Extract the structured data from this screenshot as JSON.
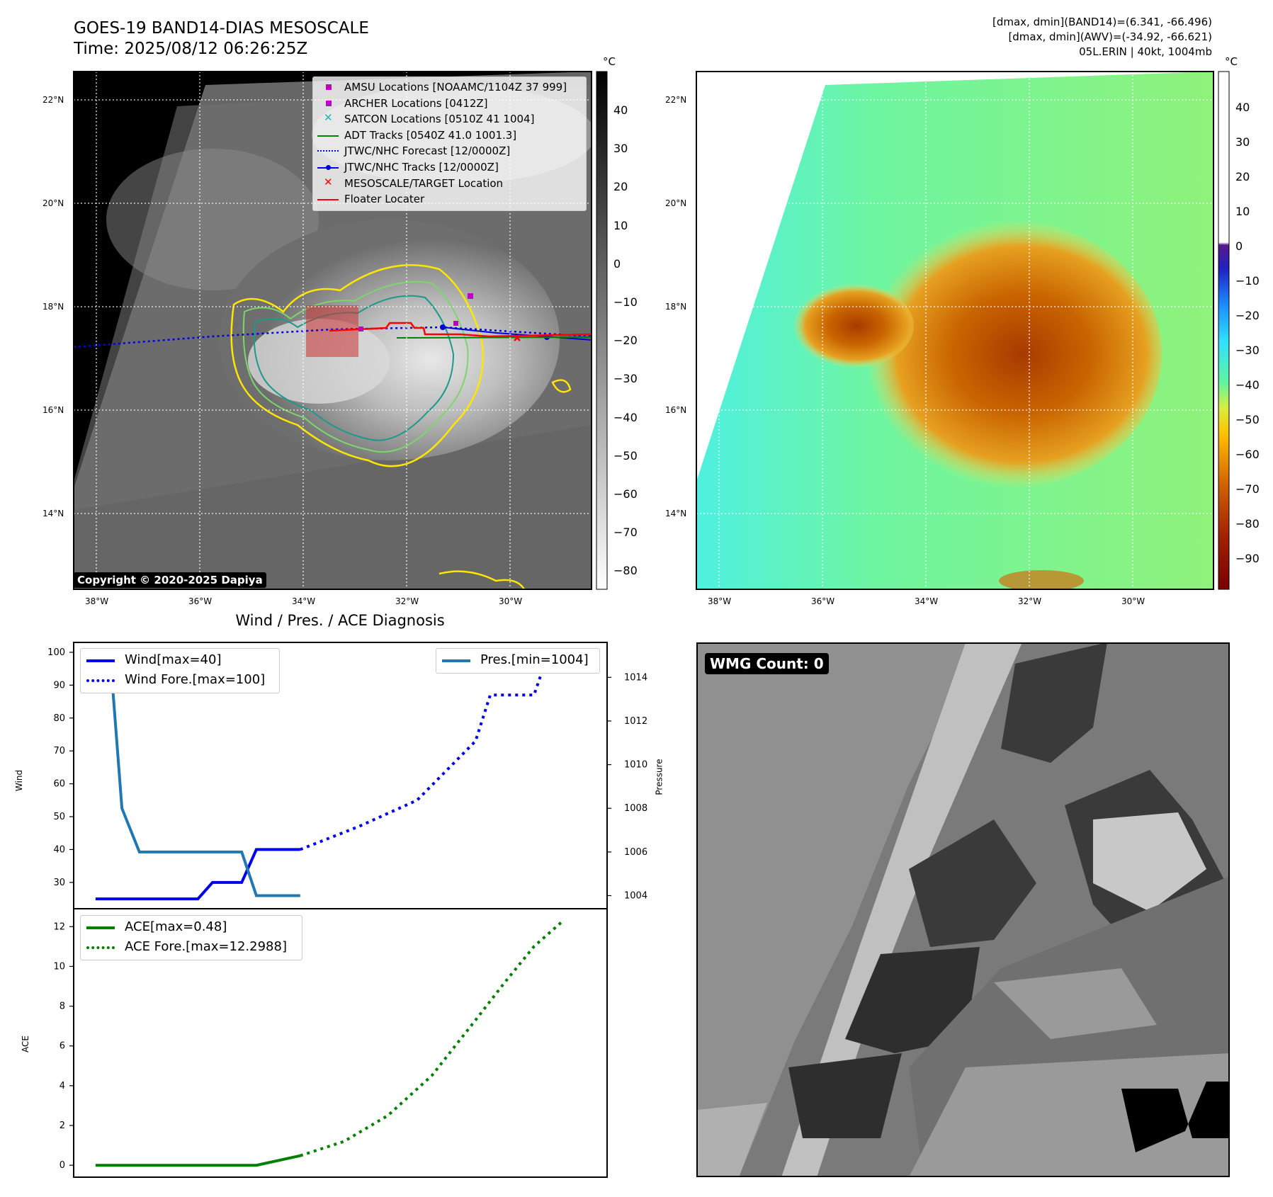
{
  "header": {
    "title": "GOES-19 BAND14-DIAS MESOSCALE",
    "time": "Time: 2025/08/12 06:26:25Z",
    "stats_band14": "[dmax, dmin](BAND14)=(6.341, -66.496)",
    "stats_awv": "[dmax, dmin](AWV)=(-34.92, -66.621)",
    "storm": "05L.ERIN | 40kt, 1004mb"
  },
  "map_ir": {
    "lat_ticks": [
      "22°N",
      "20°N",
      "18°N",
      "16°N",
      "14°N"
    ],
    "lon_ticks": [
      "38°W",
      "36°W",
      "34°W",
      "32°W",
      "30°W"
    ],
    "legend": [
      {
        "label": "AMSU Locations [NOAAMC/1104Z 37 999]",
        "color": "#c000c0",
        "marker": "square"
      },
      {
        "label": "ARCHER Locations [0412Z]",
        "color": "#c000c0",
        "marker": "square"
      },
      {
        "label": "SATCON Locations [0510Z 41 1004]",
        "color": "#19b5b5",
        "marker": "x"
      },
      {
        "label": "ADT Tracks [0540Z 41.0 1001.3]",
        "color": "#008000",
        "marker": "line"
      },
      {
        "label": "JTWC/NHC Forecast [12/0000Z]",
        "color": "#0000dd",
        "marker": "dotted"
      },
      {
        "label": "JTWC/NHC Tracks [12/0000Z]",
        "color": "#0000dd",
        "marker": "line-dot"
      },
      {
        "label": "MESOSCALE/TARGET Location",
        "color": "#ff0000",
        "marker": "x"
      },
      {
        "label": "Floater Locater",
        "color": "#ff0000",
        "marker": "line"
      }
    ],
    "copyright": "Copyright © 2020-2025 Dapiya",
    "colorbar_unit": "°C",
    "colorbar_ticks": [
      "40",
      "30",
      "20",
      "10",
      "0",
      "−10",
      "−20",
      "−30",
      "−40",
      "−50",
      "−60",
      "−70",
      "−80"
    ]
  },
  "map_color": {
    "lat_ticks": [
      "22°N",
      "20°N",
      "18°N",
      "16°N",
      "14°N"
    ],
    "lon_ticks": [
      "38°W",
      "36°W",
      "34°W",
      "32°W",
      "30°W"
    ],
    "colorbar_unit": "°C",
    "colorbar_ticks": [
      "40",
      "30",
      "20",
      "10",
      "0",
      "−10",
      "−20",
      "−30",
      "−40",
      "−50",
      "−60",
      "−70",
      "−80",
      "−90"
    ]
  },
  "diagnosis_title": "Wind / Pres. / ACE Diagnosis",
  "wmg": {
    "label": "WMG Count: 0"
  },
  "chart_data": [
    {
      "type": "line",
      "ylabel": "Wind",
      "y2label": "Pressure",
      "ylim": [
        22,
        103
      ],
      "y2lim": [
        1003.4,
        1015.6
      ],
      "yticks": [
        30,
        40,
        50,
        60,
        70,
        80,
        90,
        100
      ],
      "y2ticks": [
        1004,
        1006,
        1008,
        1010,
        1012,
        1014
      ],
      "legend_left": [
        "Wind[max=40]",
        "Wind Fore.[max=100]"
      ],
      "legend_right": [
        "Pres.[min=1004]"
      ],
      "series": [
        {
          "name": "Wind[max=40]",
          "color": "#0000ee",
          "style": "solid",
          "axis": "left",
          "x": [
            0,
            1,
            2,
            3,
            4,
            5,
            6,
            7,
            8,
            9,
            10,
            11,
            12,
            13,
            14
          ],
          "values": [
            25,
            25,
            25,
            25,
            25,
            25,
            25,
            25,
            30,
            30,
            30,
            40,
            40,
            40,
            40
          ]
        },
        {
          "name": "Wind Fore.[max=100]",
          "color": "#0000ee",
          "style": "dotted",
          "axis": "left",
          "x": [
            14,
            18,
            22,
            26,
            27,
            30,
            31
          ],
          "values": [
            40,
            47,
            55,
            73,
            87,
            87,
            100
          ]
        },
        {
          "name": "Pres.[min=1004]",
          "color": "#1f77b4",
          "style": "solid",
          "axis": "right",
          "x": [
            0,
            1,
            1.8,
            3,
            4,
            5,
            6,
            7,
            8,
            9,
            10,
            11,
            12,
            13,
            14
          ],
          "values": [
            1015,
            1015,
            1008,
            1006,
            1006,
            1006,
            1006,
            1006,
            1006,
            1006,
            1006,
            1004,
            1004,
            1004,
            1004
          ]
        }
      ],
      "xlim": [
        -1.5,
        35
      ]
    },
    {
      "type": "line",
      "ylabel": "ACE",
      "ylim": [
        -0.6,
        12.9
      ],
      "yticks": [
        0,
        2,
        4,
        6,
        8,
        10,
        12
      ],
      "legend": [
        "ACE[max=0.48]",
        "ACE Fore.[max=12.2988]"
      ],
      "series": [
        {
          "name": "ACE[max=0.48]",
          "color": "#008000",
          "style": "solid",
          "x": [
            0,
            11,
            14
          ],
          "values": [
            0,
            0,
            0.48
          ]
        },
        {
          "name": "ACE Fore.[max=12.2988]",
          "color": "#008000",
          "style": "dotted",
          "x": [
            14,
            17,
            20,
            23,
            26,
            28,
            30,
            32
          ],
          "values": [
            0.48,
            1.2,
            2.5,
            4.5,
            7.3,
            9.2,
            11,
            12.3
          ]
        }
      ],
      "xlim": [
        -1.5,
        35
      ]
    }
  ]
}
